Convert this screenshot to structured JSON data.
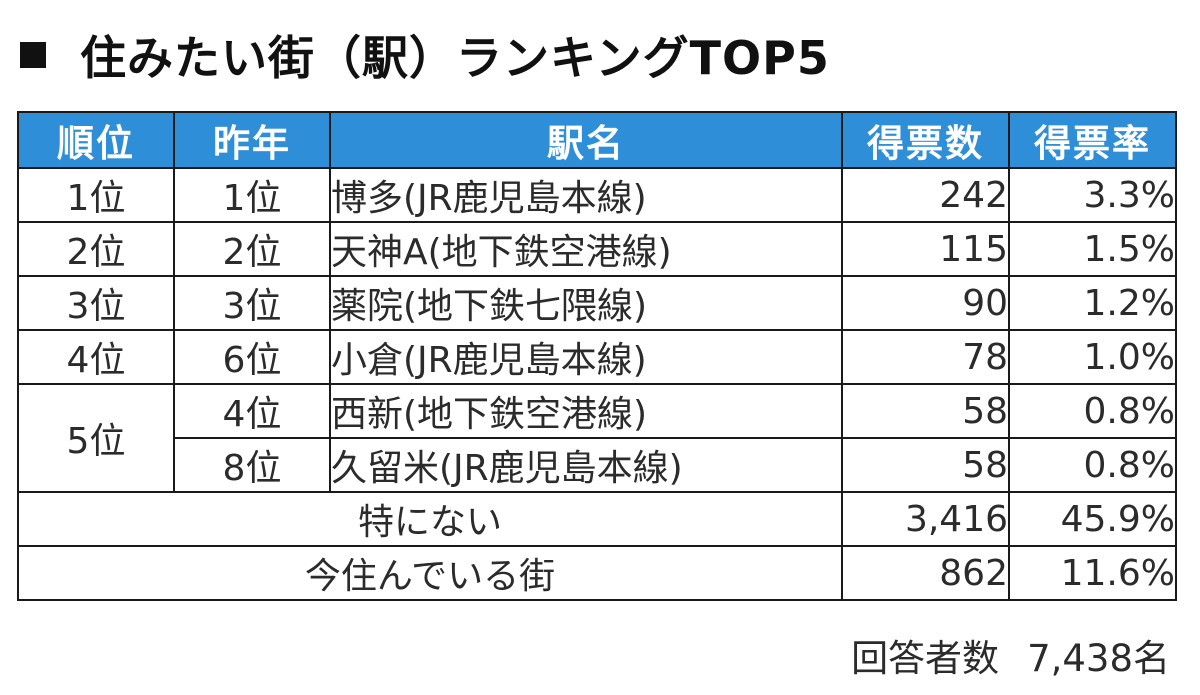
{
  "title": "住みたい街（駅）ランキングTOP5",
  "table": {
    "headers": {
      "rank": "順位",
      "last_year": "昨年",
      "station": "駅名",
      "votes": "得票数",
      "rate": "得票率"
    },
    "rows": [
      {
        "rank": "1位",
        "last_year": "1位",
        "station": "博多(JR鹿児島本線)",
        "votes": "242",
        "rate": "3.3%"
      },
      {
        "rank": "2位",
        "last_year": "2位",
        "station": "天神A(地下鉄空港線)",
        "votes": "115",
        "rate": "1.5%"
      },
      {
        "rank": "3位",
        "last_year": "3位",
        "station": "薬院(地下鉄七隈線)",
        "votes": "90",
        "rate": "1.2%"
      },
      {
        "rank": "4位",
        "last_year": "6位",
        "station": "小倉(JR鹿児島本線)",
        "votes": "78",
        "rate": "1.0%"
      },
      {
        "rank": "5位",
        "last_year": "4位",
        "station": "西新(地下鉄空港線)",
        "votes": "58",
        "rate": "0.8%"
      },
      {
        "rank": "",
        "last_year": "8位",
        "station": "久留米(JR鹿児島本線)",
        "votes": "58",
        "rate": "0.8%"
      }
    ],
    "summary": [
      {
        "label": "特にない",
        "votes": "3,416",
        "rate": "45.9%"
      },
      {
        "label": "今住んでいる街",
        "votes": "862",
        "rate": "11.6%"
      }
    ]
  },
  "footer": {
    "label": "回答者数",
    "count": "7,438名"
  }
}
